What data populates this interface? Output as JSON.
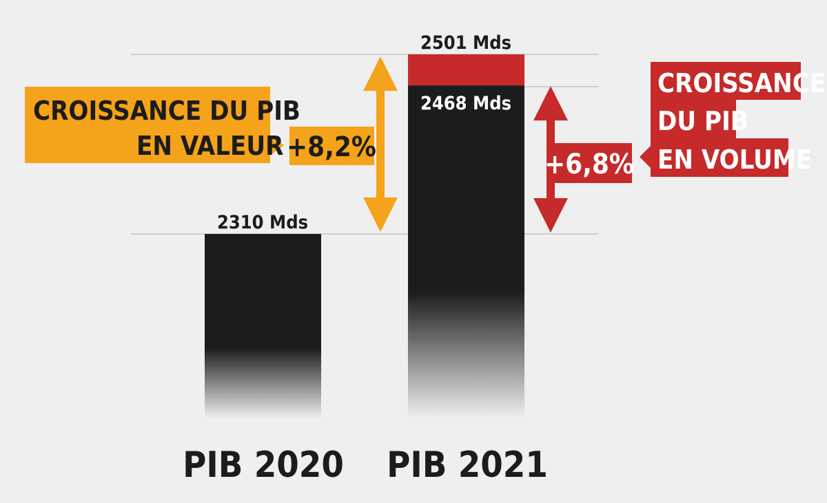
{
  "chart_data": {
    "type": "bar",
    "categories": [
      "PIB 2020",
      "PIB 2021"
    ],
    "unit": "Mds",
    "bars": [
      {
        "category": "PIB 2020",
        "value": 2310,
        "label": "2310 Mds"
      },
      {
        "category": "PIB 2021",
        "value": 2468,
        "label": "2468 Mds",
        "stacked_value": 2501,
        "stacked_label": "2501 Mds"
      }
    ],
    "annotations": {
      "value_growth": {
        "lines": [
          "CROISSANCE DU PIB",
          "EN VALEUR"
        ],
        "pct": "+8,2%",
        "from": 2310,
        "to": 2501
      },
      "volume_growth": {
        "lines": [
          "CROISSANCE",
          "DU PIB",
          "EN VOLUME"
        ],
        "pct": "+6,8%",
        "from": 2310,
        "to": 2468
      }
    },
    "colors": {
      "bar": "#1c1c1c",
      "value_growth": "#f5a31a",
      "volume_growth": "#c62a2a",
      "background": "#efefef",
      "gridline": "#cfcfcf"
    }
  }
}
